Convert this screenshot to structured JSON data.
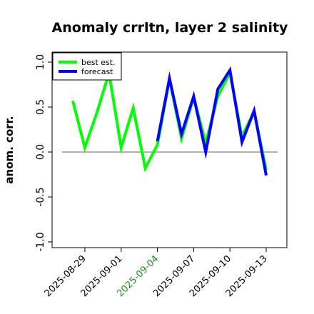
{
  "chart_data": {
    "type": "line",
    "title": "Anomaly crrltn, layer 2 salinity",
    "xlabel": "",
    "ylabel": "anom. corr.",
    "ylim": [
      -1.0,
      1.0
    ],
    "yticks": [
      -1.0,
      -0.5,
      0.0,
      0.5,
      1.0
    ],
    "ytick_labels": [
      "-1.0",
      "-0.5",
      "0.0",
      "0.5",
      "1.0"
    ],
    "x_dates": [
      "2025-08-28",
      "2025-08-29",
      "2025-08-30",
      "2025-08-31",
      "2025-09-01",
      "2025-09-02",
      "2025-09-03",
      "2025-09-04",
      "2025-09-05",
      "2025-09-06",
      "2025-09-07",
      "2025-09-08",
      "2025-09-09",
      "2025-09-10",
      "2025-09-11",
      "2025-09-12",
      "2025-09-13"
    ],
    "xticks": [
      "2025-08-29",
      "2025-09-01",
      "2025-09-04",
      "2025-09-07",
      "2025-09-10",
      "2025-09-13"
    ],
    "highlight_tick": "2025-09-04",
    "highlight_color": "#228B22",
    "reference_line": 0.0,
    "grid": false,
    "legend_position": "top-left",
    "series": [
      {
        "name": "best est.",
        "color": "#00ff00",
        "x": [
          "2025-08-28",
          "2025-08-29",
          "2025-08-30",
          "2025-08-31",
          "2025-09-01",
          "2025-09-02",
          "2025-09-03",
          "2025-09-04",
          "2025-09-05",
          "2025-09-06",
          "2025-09-07",
          "2025-09-08",
          "2025-09-09",
          "2025-09-10",
          "2025-09-11",
          "2025-09-12",
          "2025-09-13"
        ],
        "values": [
          0.57,
          0.05,
          0.44,
          0.88,
          0.05,
          0.49,
          -0.18,
          0.08,
          0.81,
          0.15,
          0.61,
          0.1,
          0.62,
          0.88,
          0.17,
          0.45,
          -0.2
        ]
      },
      {
        "name": "forecast",
        "color": "#0000ff",
        "x": [
          "2025-09-04",
          "2025-09-05",
          "2025-09-06",
          "2025-09-07",
          "2025-09-08",
          "2025-09-09",
          "2025-09-10",
          "2025-09-11",
          "2025-09-12",
          "2025-09-13"
        ],
        "values": [
          0.12,
          0.82,
          0.2,
          0.62,
          0.0,
          0.7,
          0.91,
          0.11,
          0.46,
          -0.26
        ]
      }
    ]
  }
}
